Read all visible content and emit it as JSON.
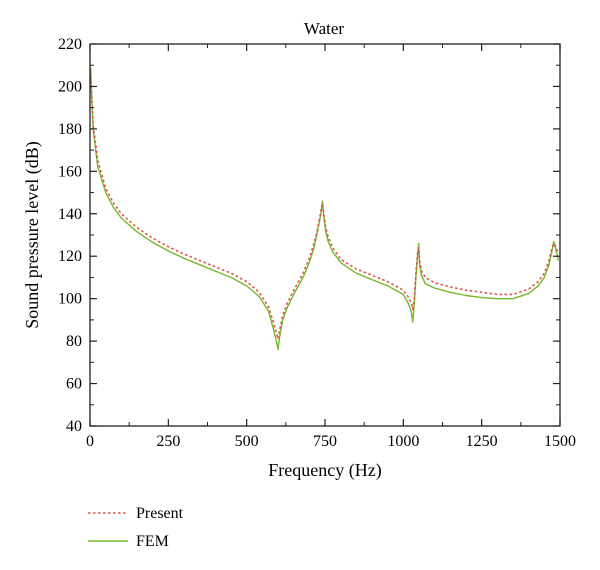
{
  "chart_data": {
    "type": "line",
    "title": "Water",
    "xlabel": "Frequency (Hz)",
    "ylabel": "Sound pressure level (dB)",
    "xlim": [
      0,
      1500
    ],
    "ylim": [
      40,
      220
    ],
    "xticks": [
      "0",
      "250",
      "500",
      "750",
      "1000",
      "1250",
      "1500"
    ],
    "yticks": [
      "40",
      "60",
      "80",
      "100",
      "120",
      "140",
      "160",
      "180",
      "200",
      "220"
    ],
    "grid": false,
    "legend_position": "bottom-left, below plot",
    "series": [
      {
        "name": "Present",
        "color": "#e0524a",
        "style": "dotted",
        "x": [
          2,
          10,
          25,
          50,
          75,
          100,
          150,
          200,
          250,
          300,
          350,
          400,
          450,
          500,
          540,
          570,
          585,
          595,
          600,
          605,
          615,
          630,
          650,
          680,
          700,
          715,
          725,
          733,
          738,
          742,
          746,
          752,
          760,
          775,
          800,
          850,
          900,
          950,
          1000,
          1015,
          1025,
          1030,
          1035,
          1040,
          1046,
          1049,
          1052,
          1058,
          1070,
          1100,
          1150,
          1200,
          1250,
          1300,
          1350,
          1400,
          1430,
          1450,
          1465,
          1475,
          1480,
          1485,
          1490,
          1495
        ],
        "y": [
          205,
          182,
          165,
          152,
          145,
          140,
          133.5,
          128.5,
          124.5,
          121,
          118,
          115,
          112,
          108,
          103,
          96,
          89,
          84,
          81,
          85,
          92,
          98,
          104,
          112,
          119,
          126,
          132,
          138,
          142,
          145,
          140,
          134,
          129,
          124,
          118.5,
          114,
          111,
          108,
          104,
          101,
          98,
          95,
          100,
          112,
          122,
          124,
          118,
          113,
          110,
          107.5,
          105.5,
          104,
          103,
          102,
          102,
          104.5,
          108,
          112,
          118,
          124,
          126,
          125,
          123,
          122
        ]
      },
      {
        "name": "FEM",
        "color": "#77b82a",
        "style": "solid",
        "x": [
          2,
          10,
          25,
          50,
          75,
          100,
          150,
          200,
          250,
          300,
          350,
          400,
          450,
          500,
          540,
          570,
          585,
          595,
          600,
          605,
          615,
          630,
          650,
          680,
          700,
          715,
          725,
          733,
          738,
          742,
          746,
          752,
          760,
          775,
          800,
          850,
          900,
          950,
          1000,
          1015,
          1025,
          1030,
          1035,
          1040,
          1046,
          1049,
          1052,
          1058,
          1070,
          1100,
          1150,
          1200,
          1250,
          1300,
          1350,
          1400,
          1430,
          1450,
          1465,
          1475,
          1480,
          1485,
          1490,
          1495
        ],
        "y": [
          209,
          180,
          162,
          150,
          143,
          138,
          131.5,
          126.5,
          122.5,
          119,
          116,
          113,
          110,
          106,
          101,
          94,
          86,
          80,
          76,
          82,
          90,
          96,
          102,
          110,
          117,
          124,
          131,
          137,
          141,
          146,
          139,
          132,
          127,
          122,
          117,
          112,
          109,
          106,
          102,
          98,
          94,
          89,
          98,
          110,
          121,
          126,
          116,
          111,
          107,
          105,
          103,
          101.5,
          100.5,
          100,
          100,
          102.5,
          106,
          110,
          116,
          123,
          127,
          124,
          121,
          118
        ]
      }
    ]
  }
}
